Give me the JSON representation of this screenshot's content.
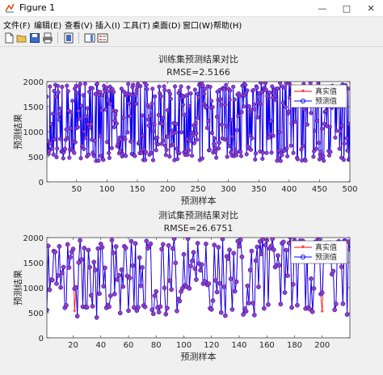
{
  "window": {
    "title": "Figure 1",
    "minimize": "—",
    "maximize": "□",
    "close": "✕"
  },
  "menu": [
    "文件(F)",
    "编辑(E)",
    "查看(V)",
    "插入(I)",
    "工具(T)",
    "桌面(D)",
    "窗口(W)",
    "帮助(H)"
  ],
  "toolbar_icons": [
    "new-figure-icon",
    "open-icon",
    "save-icon",
    "print-icon",
    "link-plot-icon",
    "insert-colorbar-icon",
    "insert-legend-icon"
  ],
  "colors": {
    "true_series": "#ff0000",
    "pred_series": "#0000ff",
    "marker_fill": "#9b3fa8"
  },
  "chart_data": [
    {
      "type": "line",
      "title": "训练集预测结果对比",
      "subtitle": "RMSE=2.5166",
      "xlabel": "预测样本",
      "ylabel": "预测结果",
      "xlim": [
        1,
        500
      ],
      "ylim": [
        0,
        2000
      ],
      "xticks": [
        50,
        100,
        150,
        200,
        250,
        300,
        350,
        400,
        450,
        500
      ],
      "yticks": [
        0,
        500,
        1000,
        1500,
        2000
      ],
      "grid": false,
      "legend_position": "top-right",
      "series": [
        {
          "name": "真实值",
          "style": "red line with star markers"
        },
        {
          "name": "预测值",
          "style": "blue line with circle markers"
        }
      ],
      "x_count": 500,
      "y_range_observed": [
        420,
        1980
      ]
    },
    {
      "type": "line",
      "title": "测试集预测结果对比",
      "subtitle": "RMSE=26.6751",
      "xlabel": "预测样本",
      "ylabel": "预测结果",
      "xlim": [
        1,
        220
      ],
      "ylim": [
        0,
        2000
      ],
      "xticks": [
        20,
        40,
        60,
        80,
        100,
        120,
        140,
        160,
        180,
        200
      ],
      "yticks": [
        0,
        500,
        1000,
        1500,
        2000
      ],
      "grid": false,
      "legend_position": "top-right",
      "series": [
        {
          "name": "真实值",
          "style": "red line with star markers"
        },
        {
          "name": "预测值",
          "style": "blue line with circle markers"
        }
      ],
      "x_count": 220,
      "y_range_observed": [
        420,
        1980
      ],
      "annotated_outliers": [
        {
          "x": 21,
          "true": 520,
          "pred": 980
        },
        {
          "x": 200,
          "true": 510,
          "pred": 900
        }
      ]
    }
  ]
}
